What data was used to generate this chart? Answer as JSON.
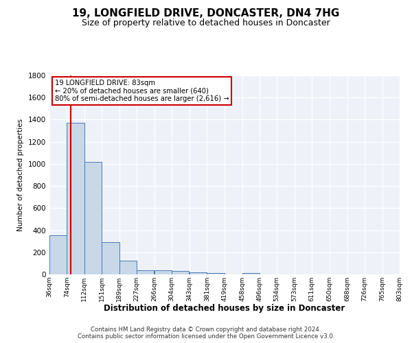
{
  "title": "19, LONGFIELD DRIVE, DONCASTER, DN4 7HG",
  "subtitle": "Size of property relative to detached houses in Doncaster",
  "xlabel": "Distribution of detached houses by size in Doncaster",
  "ylabel": "Number of detached properties",
  "bin_edges": [
    36,
    74,
    112,
    151,
    189,
    227,
    266,
    304,
    343,
    381,
    419,
    458,
    496,
    534,
    573,
    611,
    650,
    688,
    726,
    765,
    803
  ],
  "bin_labels": [
    "36sqm",
    "74sqm",
    "112sqm",
    "151sqm",
    "189sqm",
    "227sqm",
    "266sqm",
    "304sqm",
    "343sqm",
    "381sqm",
    "419sqm",
    "458sqm",
    "496sqm",
    "534sqm",
    "573sqm",
    "611sqm",
    "650sqm",
    "688sqm",
    "726sqm",
    "765sqm",
    "803sqm"
  ],
  "counts": [
    355,
    1370,
    1020,
    290,
    125,
    40,
    35,
    30,
    20,
    15,
    0,
    15,
    0,
    0,
    0,
    0,
    0,
    0,
    0,
    0
  ],
  "bar_color": "#c8d8e8",
  "bar_edge_color": "#4a7ab5",
  "property_size": 83,
  "vline_color": "#cc0000",
  "annotation_text": "19 LONGFIELD DRIVE: 83sqm\n← 20% of detached houses are smaller (640)\n80% of semi-detached houses are larger (2,616) →",
  "annotation_box_color": "#cc0000",
  "ylim": [
    0,
    1800
  ],
  "yticks": [
    0,
    200,
    400,
    600,
    800,
    1000,
    1200,
    1400,
    1600,
    1800
  ],
  "background_color": "#eef2f8",
  "footer": "Contains HM Land Registry data © Crown copyright and database right 2024.\nContains public sector information licensed under the Open Government Licence v3.0.",
  "title_fontsize": 11,
  "subtitle_fontsize": 9.5
}
